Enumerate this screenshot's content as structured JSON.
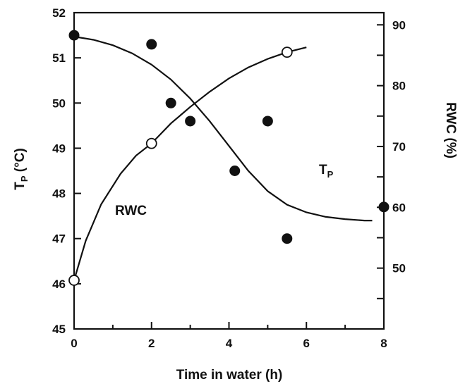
{
  "chart_data": {
    "type": "scatter",
    "xlabel": "Time in water  (h)",
    "ylabel_left": {
      "main": "T",
      "sub": "P",
      "rest": " (°C)"
    },
    "ylabel_right": "RWC  (%)",
    "xlim": [
      0,
      8
    ],
    "ylim_left": [
      45,
      52
    ],
    "ylim_right": [
      40,
      92
    ],
    "x_ticks": [
      0,
      2,
      4,
      6,
      8
    ],
    "y_left_ticks": [
      45,
      46,
      47,
      48,
      49,
      50,
      51,
      52
    ],
    "y_right_labeled_ticks": [
      50,
      60,
      70,
      80,
      90
    ],
    "y_right_minor_ticks": [
      45,
      55,
      65,
      75,
      85
    ],
    "grid": false,
    "annotations": {
      "rwc": "RWC",
      "tp_main": "T",
      "tp_sub": "P"
    },
    "series": [
      {
        "id": "tp",
        "axis": "left",
        "marker": "filled-circle",
        "points": [
          [
            0,
            51.5
          ],
          [
            2,
            51.3
          ],
          [
            2.5,
            50.0
          ],
          [
            3,
            49.6
          ],
          [
            4.15,
            48.5
          ],
          [
            5,
            49.6
          ],
          [
            5.5,
            47.0
          ],
          [
            8,
            47.7
          ]
        ],
        "fit": [
          [
            0,
            51.47
          ],
          [
            0.5,
            51.4
          ],
          [
            1,
            51.28
          ],
          [
            1.5,
            51.1
          ],
          [
            2,
            50.85
          ],
          [
            2.5,
            50.52
          ],
          [
            3,
            50.1
          ],
          [
            3.5,
            49.6
          ],
          [
            4,
            49.05
          ],
          [
            4.5,
            48.5
          ],
          [
            5,
            48.05
          ],
          [
            5.5,
            47.75
          ],
          [
            6,
            47.58
          ],
          [
            6.5,
            47.48
          ],
          [
            7,
            47.43
          ],
          [
            7.5,
            47.4
          ],
          [
            7.7,
            47.4
          ]
        ]
      },
      {
        "id": "rwc",
        "axis": "right",
        "marker": "open-circle",
        "points": [
          [
            0,
            48
          ],
          [
            2,
            70.5
          ],
          [
            5.5,
            85.5
          ]
        ],
        "fit": [
          [
            0,
            48
          ],
          [
            0.3,
            54.5
          ],
          [
            0.7,
            60.5
          ],
          [
            1.2,
            65.5
          ],
          [
            1.6,
            68.5
          ],
          [
            2,
            70.5
          ],
          [
            2.5,
            73.8
          ],
          [
            3,
            76.5
          ],
          [
            3.5,
            79
          ],
          [
            4,
            81.2
          ],
          [
            4.5,
            83
          ],
          [
            5,
            84.4
          ],
          [
            5.5,
            85.5
          ],
          [
            6,
            86.3
          ]
        ]
      }
    ]
  }
}
